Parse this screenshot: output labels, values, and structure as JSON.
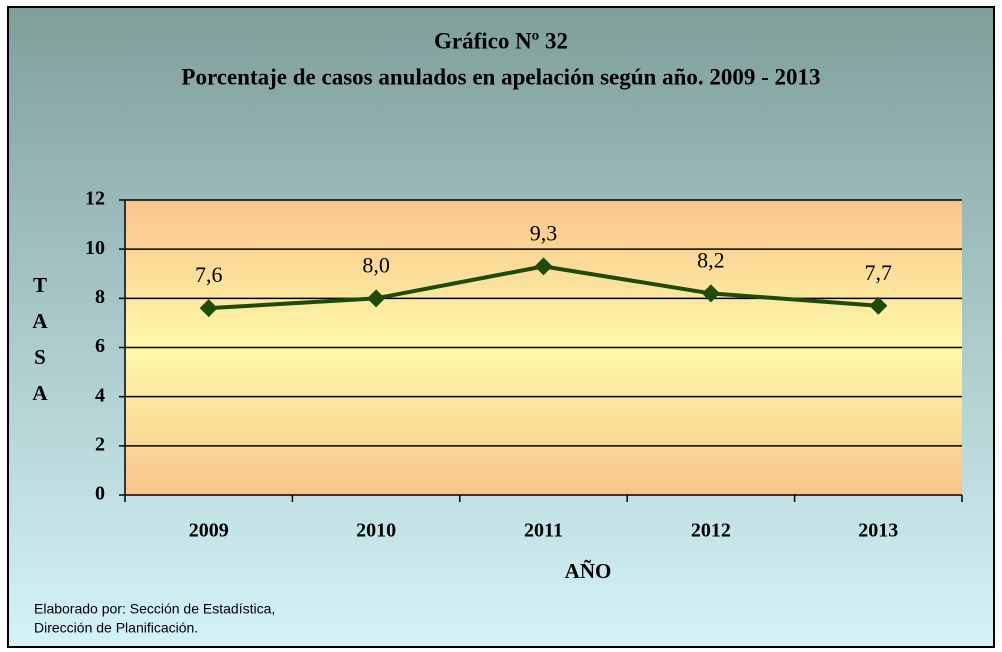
{
  "chart_data": {
    "type": "line",
    "title": "Gráfico Nº 32",
    "subtitle": "Porcentaje de casos anulados en apelación según año. 2009 - 2013",
    "x_label": "AÑO",
    "y_label": "TASA",
    "categories": [
      "2009",
      "2010",
      "2011",
      "2012",
      "2013"
    ],
    "values": [
      7.6,
      8.0,
      9.3,
      8.2,
      7.7
    ],
    "value_labels": [
      "7,6",
      "8,0",
      "9,3",
      "8,2",
      "7,7"
    ],
    "color": "#1f4a08",
    "ylim": [
      0,
      12
    ],
    "yticks": [
      0,
      2,
      4,
      6,
      8,
      10,
      12
    ],
    "grid": true,
    "source": [
      "Elaborado por: Sección de Estadística,",
      "Dirección de Planificación."
    ]
  }
}
